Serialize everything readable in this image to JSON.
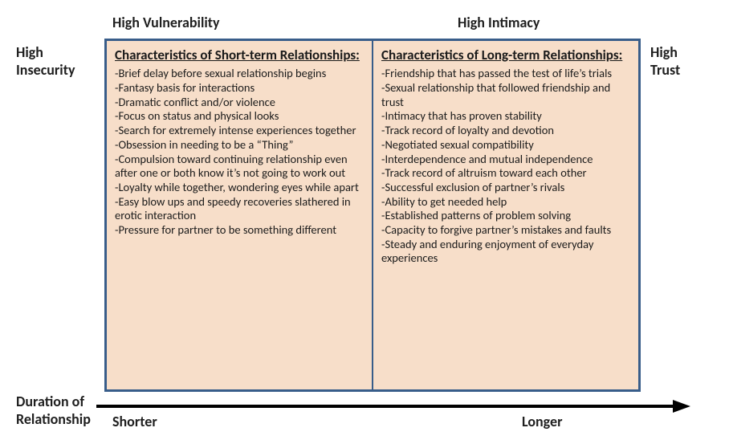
{
  "labels": {
    "topLeftInner": "High Vulnerability",
    "topRightInner": "High Intimacy",
    "leftOuter": "High\nInsecurity",
    "rightOuter": "High\nTrust",
    "axis": "Duration of\nRelationship",
    "bottomLeft": "Shorter",
    "bottomRight": "Longer"
  },
  "columns": {
    "left": {
      "header": "Characteristics of Short-term Relationships:",
      "items": [
        "-Brief delay before sexual relationship begins",
        "-Fantasy basis for interactions",
        "-Dramatic conflict and/or violence",
        "-Focus on status and physical looks",
        "-Search for extremely intense experiences together",
        "-Obsession in needing to be a “Thing”",
        "-Compulsion toward continuing relationship even after one or both know it’s not going to work out",
        "-Loyalty while together, wondering eyes while apart",
        "-Easy blow ups and speedy recoveries slathered in erotic interaction",
        "-Pressure for partner to be something different"
      ]
    },
    "right": {
      "header": "Characteristics of Long-term Relationships:",
      "items": [
        "-Friendship that has passed the test of life’s trials",
        "-Sexual relationship that followed friendship and trust",
        "-Intimacy that has  proven stability",
        "-Track record of loyalty and devotion",
        "-Negotiated sexual compatibility",
        "-Interdependence and mutual independence",
        "-Track record of altruism toward each other",
        "-Successful exclusion of partner’s rivals",
        "-Ability to get needed help",
        "-Established patterns of problem solving",
        "-Capacity to forgive partner’s mistakes and faults",
        "-Steady and enduring enjoyment of everyday experiences"
      ]
    }
  },
  "style": {
    "boxBackground": "#f7dec9",
    "boxBorder": "#385d8a",
    "dividerColor": "#385d8a",
    "textColor": "#1a1a1a",
    "labelColor": "#1f1f1f",
    "arrowColor": "#000000",
    "pageBackground": "#ffffff",
    "headerFontSize": 17,
    "itemFontSize": 14.5,
    "labelFontSize": 18
  }
}
